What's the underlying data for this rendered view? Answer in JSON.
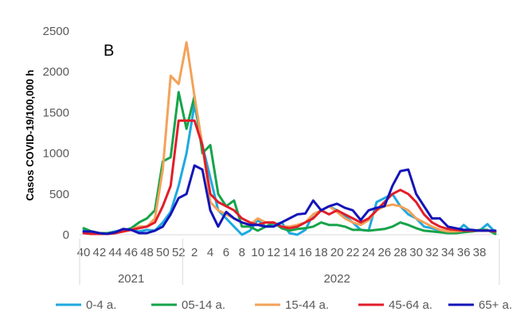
{
  "chart_data": {
    "type": "line",
    "panel_label": "B",
    "ylabel": "Casos COVID-19/100,000 h",
    "xlabel": "",
    "ylim": [
      0,
      2500
    ],
    "y_ticks": [
      0,
      500,
      1000,
      1500,
      2000,
      2500
    ],
    "grid": false,
    "legend_position": "bottom",
    "x_tick_labels": [
      "40",
      "42",
      "44",
      "46",
      "48",
      "50",
      "52",
      "2",
      "4",
      "6",
      "8",
      "10",
      "12",
      "14",
      "16",
      "18",
      "20",
      "22",
      "24",
      "26",
      "28",
      "30",
      "32",
      "34",
      "36",
      "38"
    ],
    "year_groups": [
      {
        "label": "2021",
        "start_week_index": 0,
        "end_week_index": 13
      },
      {
        "label": "2022",
        "start_week_index": 13,
        "end_week_index": 52
      }
    ],
    "series": [
      {
        "name": "0-4 a.",
        "color": "#1FA9E1",
        "values": [
          60,
          30,
          20,
          20,
          40,
          60,
          60,
          40,
          60,
          50,
          150,
          280,
          600,
          1000,
          1600,
          1100,
          700,
          300,
          200,
          100,
          0,
          50,
          180,
          100,
          120,
          150,
          20,
          0,
          60,
          250,
          300,
          350,
          300,
          230,
          150,
          60,
          50,
          400,
          450,
          500,
          350,
          250,
          200,
          100,
          80,
          50,
          30,
          20,
          120,
          40,
          50,
          130,
          30
        ]
      },
      {
        "name": "05-14 a.",
        "color": "#16A34A",
        "values": [
          80,
          40,
          20,
          20,
          30,
          50,
          80,
          150,
          200,
          300,
          900,
          950,
          1750,
          1300,
          1700,
          1000,
          1100,
          500,
          350,
          420,
          100,
          100,
          50,
          100,
          150,
          80,
          50,
          70,
          80,
          100,
          150,
          120,
          120,
          100,
          60,
          60,
          50,
          60,
          70,
          100,
          150,
          120,
          80,
          50,
          40,
          30,
          20,
          20,
          30,
          40,
          60,
          60,
          10
        ]
      },
      {
        "name": "15-44 a.",
        "color": "#F4A259",
        "values": [
          20,
          10,
          10,
          10,
          20,
          40,
          60,
          100,
          100,
          200,
          800,
          1950,
          1850,
          2360,
          1700,
          1100,
          400,
          300,
          250,
          200,
          150,
          120,
          200,
          150,
          150,
          100,
          100,
          120,
          150,
          250,
          300,
          350,
          280,
          200,
          150,
          120,
          180,
          300,
          350,
          370,
          350,
          300,
          200,
          150,
          100,
          60,
          40,
          40,
          50,
          60,
          50,
          50,
          40
        ]
      },
      {
        "name": "45-64 a.",
        "color": "#E11D2A",
        "values": [
          20,
          10,
          10,
          10,
          20,
          40,
          60,
          80,
          100,
          150,
          350,
          600,
          1400,
          1400,
          1400,
          1100,
          500,
          400,
          350,
          300,
          200,
          150,
          120,
          150,
          150,
          100,
          80,
          100,
          150,
          200,
          300,
          250,
          300,
          250,
          200,
          150,
          200,
          300,
          400,
          500,
          550,
          500,
          400,
          250,
          150,
          100,
          70,
          60,
          50,
          50,
          50,
          50,
          40
        ]
      },
      {
        "name": "65+ a.",
        "color": "#1414B8",
        "values": [
          40,
          40,
          20,
          10,
          30,
          70,
          60,
          20,
          20,
          50,
          100,
          250,
          450,
          500,
          850,
          800,
          300,
          100,
          280,
          200,
          150,
          120,
          120,
          100,
          100,
          150,
          200,
          250,
          260,
          420,
          300,
          350,
          380,
          330,
          300,
          180,
          300,
          330,
          350,
          600,
          780,
          800,
          500,
          350,
          200,
          200,
          100,
          80,
          60,
          60,
          50,
          50,
          50
        ]
      }
    ]
  }
}
